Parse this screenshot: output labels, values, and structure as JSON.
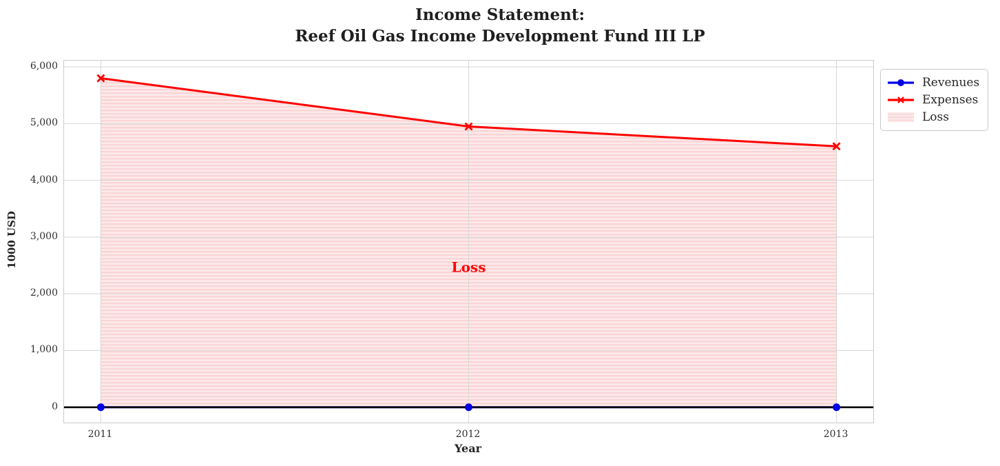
{
  "figure": {
    "title_line1": "Income Statement:",
    "title_line2": "Reef Oil Gas Income Development Fund III LP"
  },
  "chart_data": {
    "type": "line",
    "title": "Income Statement: Reef Oil Gas Income Development Fund III LP",
    "xlabel": "Year",
    "ylabel": "1000 USD",
    "x": [
      2011,
      2012,
      2013
    ],
    "x_tick_labels": [
      "2011",
      "2012",
      "2013"
    ],
    "y_ticks": [
      0,
      1000,
      2000,
      3000,
      4000,
      5000,
      6000
    ],
    "y_tick_labels": [
      "0",
      "1,000",
      "2,000",
      "3,000",
      "4,000",
      "5,000",
      "6,000"
    ],
    "xlim": [
      2010.9,
      2013.1
    ],
    "ylim": [
      -270,
      6110
    ],
    "grid": true,
    "grid_color": "#d9d9d9",
    "spine_color": "#cccccc",
    "text_color": "#262626",
    "series": [
      {
        "name": "Revenues",
        "values": [
          0,
          0,
          0
        ],
        "color": "#0000e6",
        "marker": "circle",
        "line_width": 3
      },
      {
        "name": "Expenses",
        "values": [
          5800,
          4950,
          4600
        ],
        "color": "#ff0000",
        "marker": "x",
        "line_width": 3
      }
    ],
    "loss_fill": {
      "label": "Loss",
      "between": [
        "Expenses",
        "Revenues"
      ],
      "face_color": "#fdeaea",
      "stripe_color": "#fad5d5",
      "edge_color": "#f7bebe",
      "hatch": "horizontal-lines"
    },
    "annotation": {
      "text": "Loss",
      "x": 2012,
      "y": 2470,
      "color": "#ff0000"
    },
    "zero_line": {
      "y": 0,
      "color": "#000000"
    },
    "legend": {
      "position": "upper right outside",
      "entries": [
        "Revenues",
        "Expenses",
        "Loss"
      ]
    }
  }
}
